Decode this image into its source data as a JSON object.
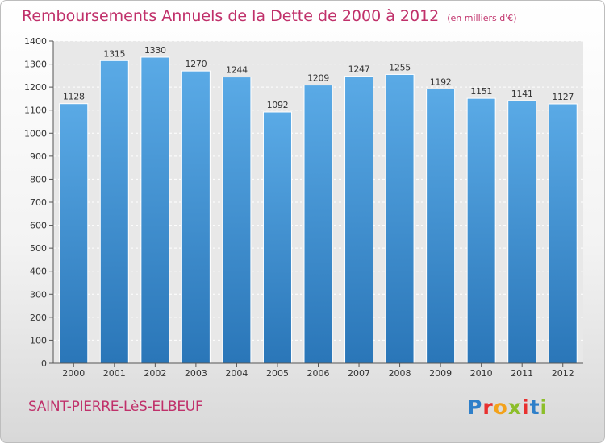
{
  "header": {
    "title": "Remboursements Annuels de la Dette de 2000 à 2012",
    "unit": "(en milliers d'€)"
  },
  "footer": {
    "place": "SAINT-PIERRE-LèS-ELBEUF",
    "logo": "Proxiti",
    "logo_colors": [
      "#2e7fc9",
      "#e8302f",
      "#f3a21b",
      "#8cbe2a",
      "#e8302f",
      "#2e7fc9",
      "#8cbe2a"
    ]
  },
  "chart_data": {
    "type": "bar",
    "categories": [
      "2000",
      "2001",
      "2002",
      "2003",
      "2004",
      "2005",
      "2006",
      "2007",
      "2008",
      "2009",
      "2010",
      "2011",
      "2012"
    ],
    "values": [
      1128,
      1315,
      1330,
      1270,
      1244,
      1092,
      1209,
      1247,
      1255,
      1192,
      1151,
      1141,
      1127
    ],
    "ylim": [
      0,
      1400
    ],
    "yticks": [
      0,
      100,
      200,
      300,
      400,
      500,
      600,
      700,
      800,
      900,
      1000,
      1100,
      1200,
      1300,
      1400
    ],
    "grid": true,
    "legend": "none",
    "bar_color_top": "#5aaae6",
    "bar_color_bottom": "#2a76b8",
    "plot_background": "#e8e8e8"
  }
}
